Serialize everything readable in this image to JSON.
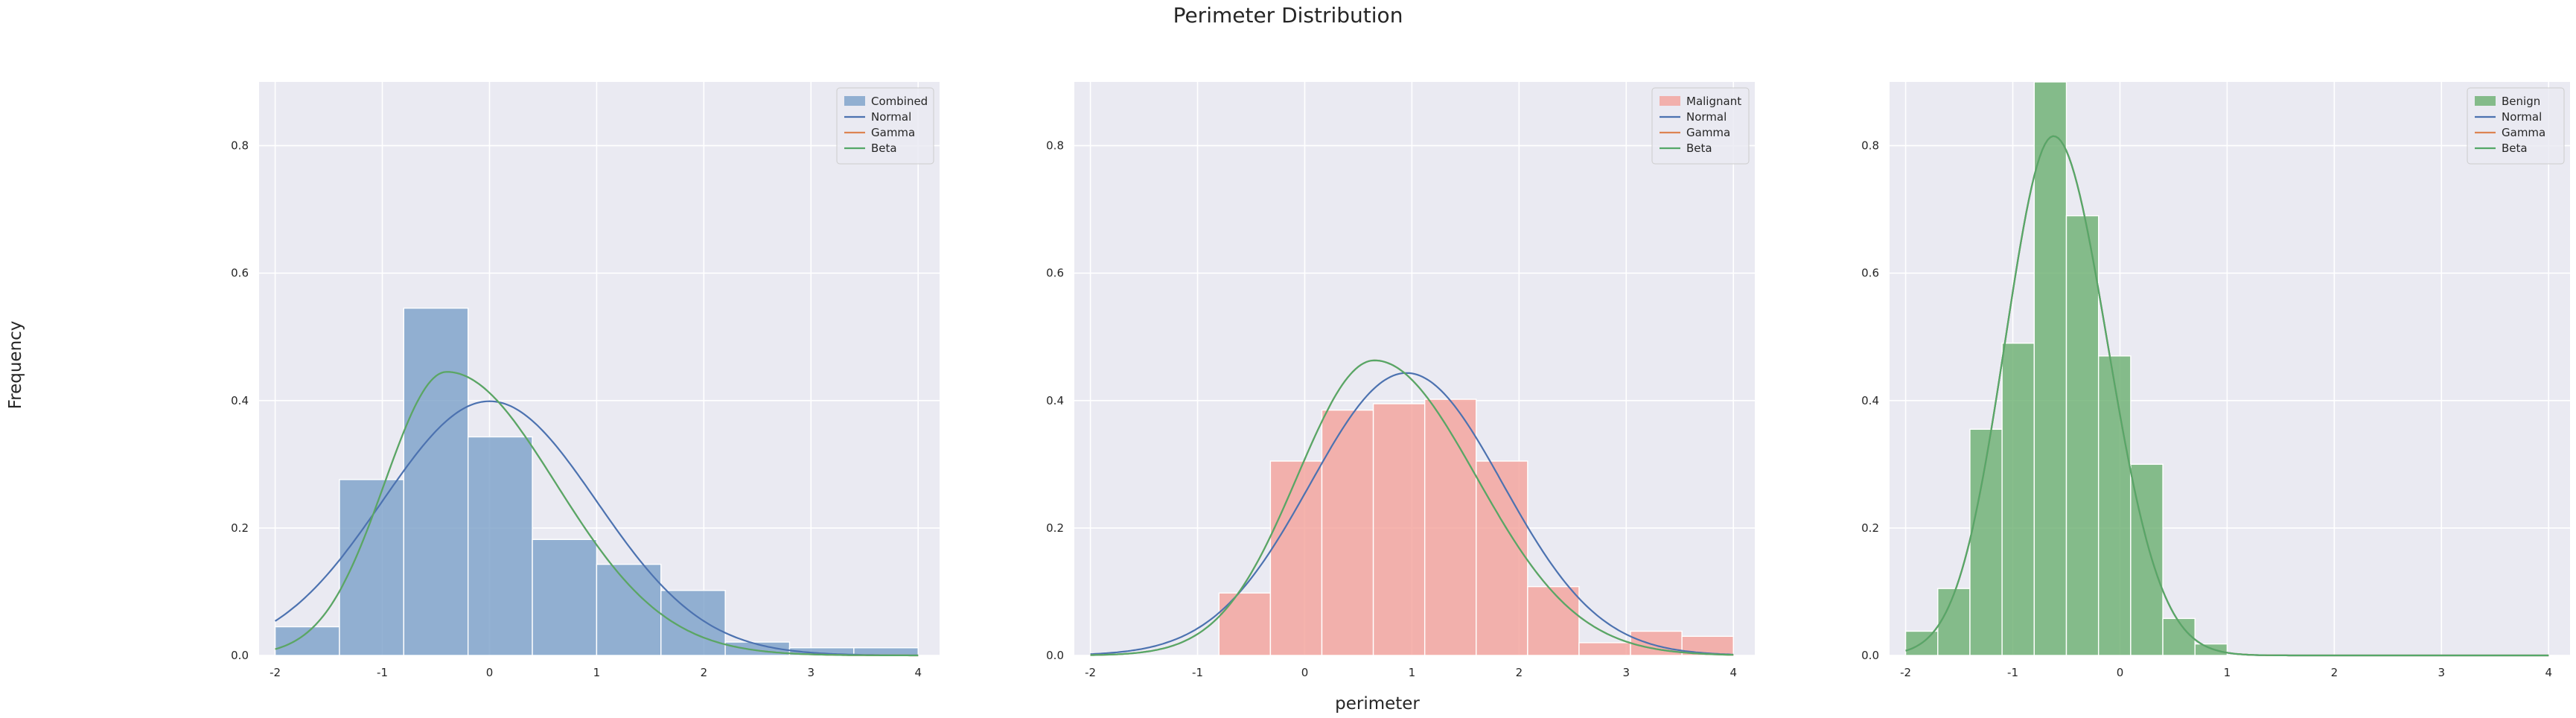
{
  "figure": {
    "title": "Perimeter Distribution",
    "xlabel": "perimeter",
    "ylabel": "Frequency"
  },
  "chart_data": [
    {
      "type": "bar",
      "panel": "combined",
      "xlim": [
        -2.15,
        4.2
      ],
      "ylim": [
        0,
        0.9
      ],
      "xticks": [
        "-2",
        "-1",
        "0",
        "1",
        "2",
        "3",
        "4"
      ],
      "yticks": [
        "0.0",
        "0.2",
        "0.4",
        "0.6",
        "0.8"
      ],
      "grid": true,
      "legend_position": "top-right",
      "hist": {
        "name": "Combined",
        "color": "#7ba0c8",
        "edges": [
          -2.0,
          -1.4,
          -0.8,
          -0.2,
          0.4,
          1.0,
          1.6,
          2.2,
          2.8,
          3.4,
          4.0
        ],
        "values": [
          0.045,
          0.276,
          0.545,
          0.343,
          0.182,
          0.143,
          0.102,
          0.021,
          0.012,
          0.012
        ]
      },
      "curves": [
        {
          "name": "Normal",
          "color": "#4c72b0",
          "kind": "normal",
          "mu": 0.0,
          "sigma": 1.0
        },
        {
          "name": "Gamma",
          "color": "#dd8452",
          "kind": "skew",
          "mode": -0.4,
          "sd_left": 0.58,
          "sd_right": 1.02,
          "peak": 0.445
        },
        {
          "name": "Beta",
          "color": "#55a868",
          "kind": "skew",
          "mode": -0.4,
          "sd_left": 0.58,
          "sd_right": 1.02,
          "peak": 0.445
        }
      ]
    },
    {
      "type": "bar",
      "panel": "malignant",
      "xlim": [
        -2.15,
        4.2
      ],
      "ylim": [
        0,
        0.9
      ],
      "xticks": [
        "-2",
        "-1",
        "0",
        "1",
        "2",
        "3",
        "4"
      ],
      "yticks": [
        "0.0",
        "0.2",
        "0.4",
        "0.6",
        "0.8"
      ],
      "grid": true,
      "legend_position": "top-right",
      "hist": {
        "name": "Malignant",
        "color": "#f4a19a",
        "edges": [
          -0.8,
          -0.32,
          0.16,
          0.64,
          1.12,
          1.6,
          2.08,
          2.56,
          3.04,
          3.52,
          4.0
        ],
        "values": [
          0.098,
          0.305,
          0.385,
          0.395,
          0.402,
          0.305,
          0.108,
          0.02,
          0.038,
          0.03
        ]
      },
      "curves": [
        {
          "name": "Normal",
          "color": "#4c72b0",
          "kind": "normal",
          "mu": 0.95,
          "sigma": 0.9
        },
        {
          "name": "Gamma",
          "color": "#dd8452",
          "kind": "skew",
          "mode": 0.65,
          "sd_left": 0.72,
          "sd_right": 0.95,
          "peak": 0.463
        },
        {
          "name": "Beta",
          "color": "#55a868",
          "kind": "skew",
          "mode": 0.65,
          "sd_left": 0.72,
          "sd_right": 0.95,
          "peak": 0.463
        }
      ]
    },
    {
      "type": "bar",
      "panel": "benign",
      "xlim": [
        -2.15,
        4.2
      ],
      "ylim": [
        0,
        0.9
      ],
      "xticks": [
        "-2",
        "-1",
        "0",
        "1",
        "2",
        "3",
        "4"
      ],
      "yticks": [
        "0.0",
        "0.2",
        "0.4",
        "0.6",
        "0.8"
      ],
      "grid": true,
      "legend_position": "top-right",
      "hist": {
        "name": "Benign",
        "color": "#6aaf6f",
        "edges": [
          -2.0,
          -1.7,
          -1.4,
          -1.1,
          -0.8,
          -0.5,
          -0.2,
          0.1,
          0.4,
          0.7,
          1.0
        ],
        "values": [
          0.038,
          0.105,
          0.355,
          0.49,
          0.94,
          0.69,
          0.47,
          0.3,
          0.058,
          0.018
        ]
      },
      "curves": [
        {
          "name": "Normal",
          "color": "#4c72b0",
          "kind": "skew",
          "mode": -0.62,
          "sd_left": 0.45,
          "sd_right": 0.5,
          "peak": 0.815
        },
        {
          "name": "Gamma",
          "color": "#dd8452",
          "kind": "skew",
          "mode": -0.62,
          "sd_left": 0.45,
          "sd_right": 0.5,
          "peak": 0.815
        },
        {
          "name": "Beta",
          "color": "#55a868",
          "kind": "skew",
          "mode": -0.62,
          "sd_left": 0.45,
          "sd_right": 0.5,
          "peak": 0.815
        }
      ]
    }
  ]
}
